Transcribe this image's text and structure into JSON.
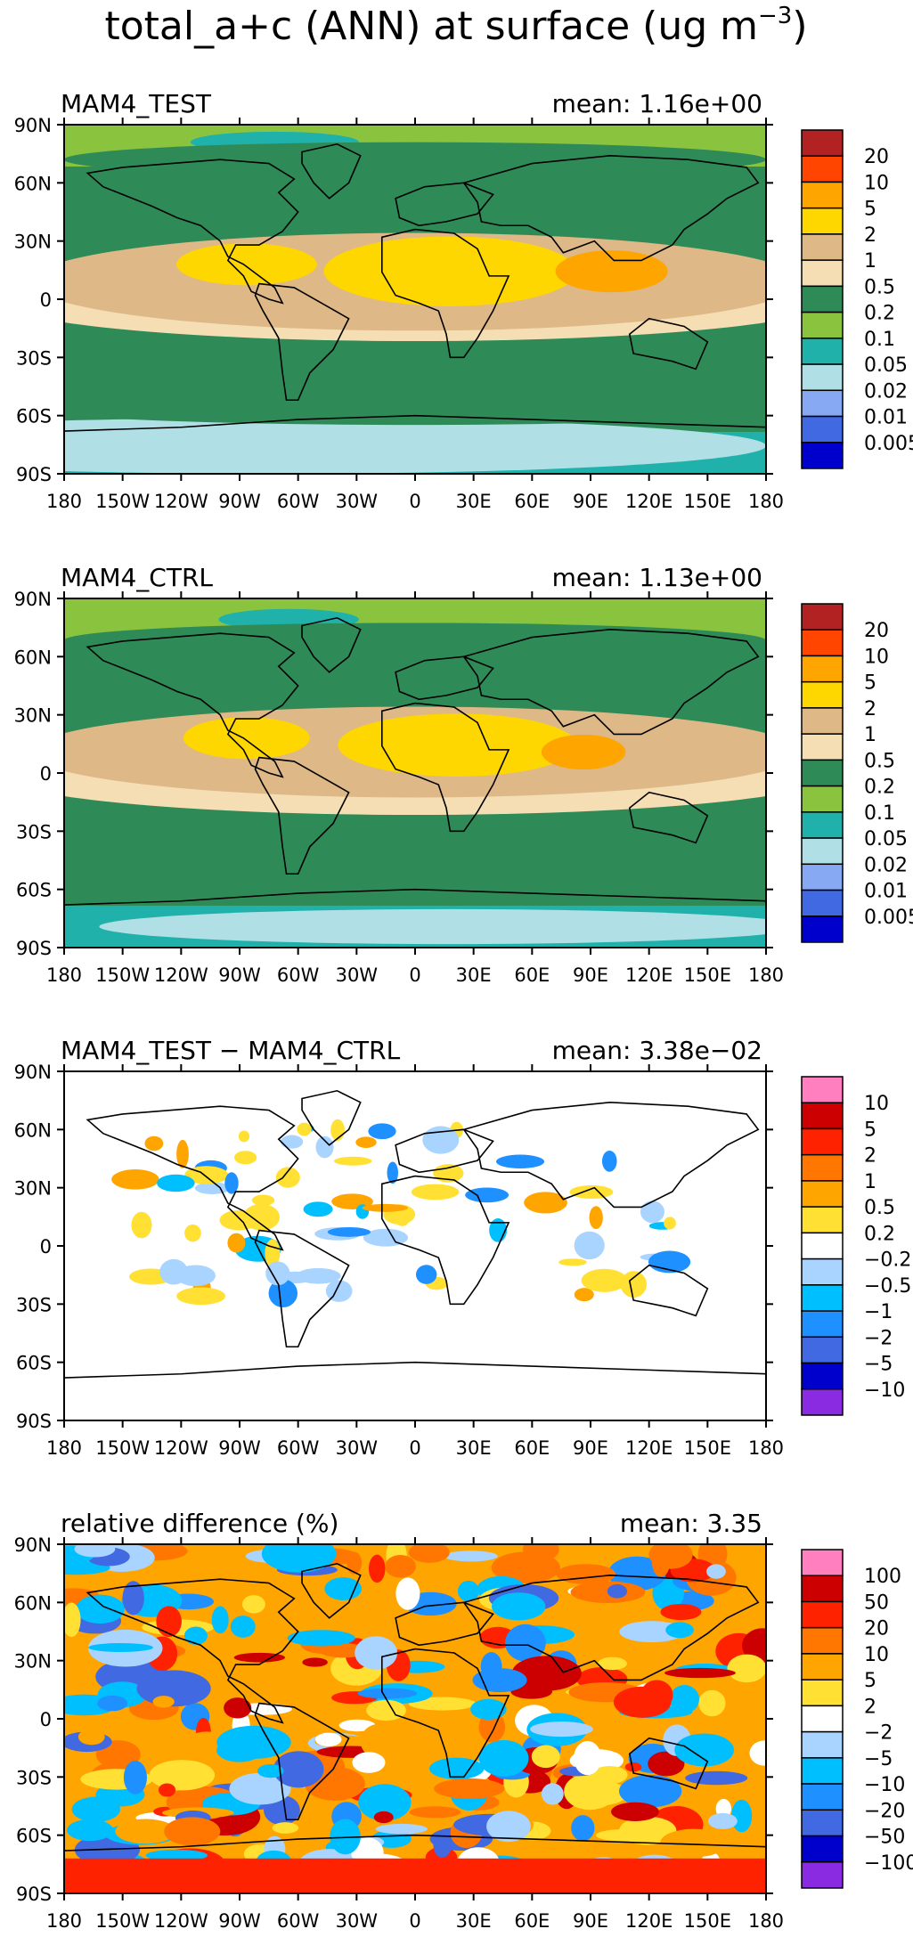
{
  "figure": {
    "title_main": "total_a+c (ANN) at surface (ug m",
    "title_sup": "−3",
    "title_close": ")"
  },
  "axes_labels": {
    "lat_ticks": [
      "90N",
      "60N",
      "30N",
      "0",
      "30S",
      "60S",
      "90S"
    ],
    "lon_ticks": [
      "180",
      "150W",
      "120W",
      "90W",
      "60W",
      "30W",
      "0",
      "30E",
      "60E",
      "90E",
      "120E",
      "150E",
      "180"
    ]
  },
  "chart_data": [
    {
      "type": "heatmap",
      "panel": "MAM4_TEST",
      "left_label": "MAM4_TEST",
      "right_label": "mean: 1.16e+00",
      "x_range": [
        -180,
        180
      ],
      "y_range": [
        -90,
        90
      ],
      "colorbar": {
        "colors": [
          "#b22222",
          "#ff4500",
          "#ffa500",
          "#ffd700",
          "#deb887",
          "#f5deb3",
          "#2e8b57",
          "#8ac43f",
          "#20b2aa",
          "#b0e0e6",
          "#87a9f4",
          "#4169e1",
          "#0000cd"
        ],
        "labels": [
          "20",
          "10",
          "5",
          "2",
          "1",
          "0.5",
          "0.2",
          "0.1",
          "0.05",
          "0.02",
          "0.01",
          "0.005"
        ]
      }
    },
    {
      "type": "heatmap",
      "panel": "MAM4_CTRL",
      "left_label": "MAM4_CTRL",
      "right_label": "mean: 1.13e+00",
      "x_range": [
        -180,
        180
      ],
      "y_range": [
        -90,
        90
      ],
      "colorbar": {
        "colors": [
          "#b22222",
          "#ff4500",
          "#ffa500",
          "#ffd700",
          "#deb887",
          "#f5deb3",
          "#2e8b57",
          "#8ac43f",
          "#20b2aa",
          "#b0e0e6",
          "#87a9f4",
          "#4169e1",
          "#0000cd"
        ],
        "labels": [
          "20",
          "10",
          "5",
          "2",
          "1",
          "0.5",
          "0.2",
          "0.1",
          "0.05",
          "0.02",
          "0.01",
          "0.005"
        ]
      }
    },
    {
      "type": "heatmap",
      "panel": "difference",
      "left_label": "MAM4_TEST − MAM4_CTRL",
      "right_label": "mean: 3.38e−02",
      "x_range": [
        -180,
        180
      ],
      "y_range": [
        -90,
        90
      ],
      "colorbar": {
        "colors": [
          "#ff7fbf",
          "#cc0000",
          "#ff2200",
          "#ff7700",
          "#ffa500",
          "#ffe033",
          "#ffffff",
          "#a8d4ff",
          "#00bfff",
          "#1e90ff",
          "#4169e1",
          "#0000cd",
          "#8a2be2"
        ],
        "labels": [
          "10",
          "5",
          "2",
          "1",
          "0.5",
          "0.2",
          "−0.2",
          "−0.5",
          "−1",
          "−2",
          "−5",
          "−10"
        ]
      }
    },
    {
      "type": "heatmap",
      "panel": "relative_difference",
      "left_label": "relative difference (%)",
      "right_label": "mean:   3.35",
      "x_range": [
        -180,
        180
      ],
      "y_range": [
        -90,
        90
      ],
      "colorbar": {
        "colors": [
          "#ff7fbf",
          "#cc0000",
          "#ff2200",
          "#ff7700",
          "#ffa500",
          "#ffe033",
          "#ffffff",
          "#a8d4ff",
          "#00bfff",
          "#1e90ff",
          "#4169e1",
          "#0000cd",
          "#8a2be2"
        ],
        "labels": [
          "100",
          "50",
          "20",
          "10",
          "5",
          "2",
          "−2",
          "−5",
          "−10",
          "−20",
          "−50",
          "−100"
        ]
      }
    }
  ]
}
